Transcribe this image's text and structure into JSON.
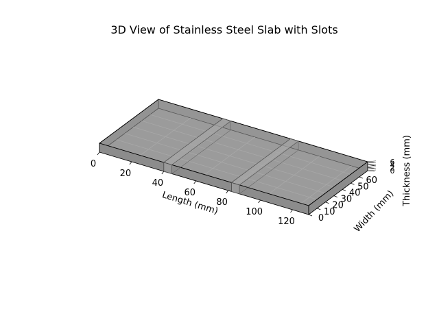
{
  "chart_data": {
    "type": "3d-surface",
    "title": "3D View of Stainless Steel Slab with Slots",
    "xlabel": "Length (mm)",
    "ylabel": "Width (mm)",
    "zlabel": "Thickness (mm)",
    "xlim": [
      0,
      130
    ],
    "ylim": [
      0,
      70
    ],
    "zlim": [
      0,
      6
    ],
    "x_ticks": [
      "0",
      "20",
      "40",
      "60",
      "80",
      "100",
      "120"
    ],
    "y_ticks": [
      "0",
      "10",
      "20",
      "30",
      "40",
      "50",
      "60"
    ],
    "z_ticks": [
      "0",
      "2",
      "4",
      "6"
    ],
    "slab": {
      "length": 130,
      "width": 70,
      "thickness": 6
    },
    "slots": [
      {
        "x_start": 40,
        "x_end": 45
      },
      {
        "x_start": 82,
        "x_end": 87
      }
    ],
    "colors": {
      "face": "#9b9b9b",
      "edge": "#000000",
      "grid": "#b8b8b8"
    }
  }
}
